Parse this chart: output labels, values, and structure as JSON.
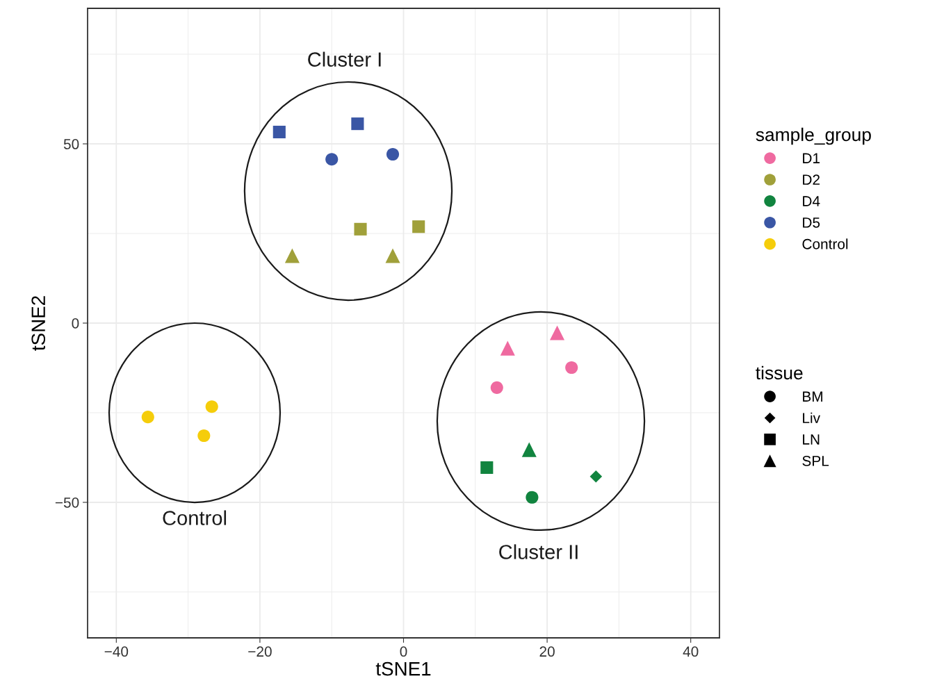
{
  "chart_data": {
    "type": "scatter",
    "xlabel": "tSNE1",
    "ylabel": "tSNE2",
    "legend_title": [
      "sample_group",
      "tissue"
    ],
    "legend": "right",
    "grid": true,
    "xlim": [
      -44,
      44
    ],
    "xticks": [
      {
        "value": -40,
        "label": "−40"
      },
      {
        "value": -20,
        "label": "−20"
      },
      0,
      20,
      40
    ],
    "ylim": [
      -87.8,
      87.8
    ],
    "yticks": [
      {
        "value": -50,
        "label": "−50"
      },
      0,
      50
    ],
    "annotations": [
      "Cluster I",
      "Control",
      "Cluster II",
      "BM",
      "Liv",
      "LN",
      "SPL"
    ],
    "series": [
      {
        "name": "D1",
        "marker": "circle",
        "color": "#ef6aa0",
        "x": [
          13.0,
          23.4
        ],
        "values": [
          -18.0,
          -12.4
        ]
      },
      {
        "marker": "diamond",
        "color": "#11843f",
        "x": [
          26.8
        ],
        "values": [
          -42.8
        ]
      },
      {
        "name": "D2",
        "marker": "square",
        "color": "#a0a03a",
        "x": [
          -6.0,
          2.1
        ],
        "values": [
          26.2,
          26.9
        ]
      },
      {
        "marker": "triangle",
        "color": "#a0a03a",
        "x": [
          -15.5,
          -1.5
        ],
        "values": [
          18.8,
          18.8
        ]
      },
      {
        "marker": "triangle",
        "color": "#ef6aa0",
        "x": [
          14.5,
          21.4
        ],
        "values": [
          -7.0,
          -2.7
        ]
      },
      {
        "name": "D4",
        "marker": "circle",
        "color": "#11843f",
        "x": [
          17.9
        ],
        "values": [
          -48.6
        ]
      },
      {
        "marker": "square",
        "color": "#11843f",
        "x": [
          11.6
        ],
        "values": [
          -40.3
        ]
      },
      {
        "marker": "triangle",
        "color": "#11843f",
        "x": [
          17.5
        ],
        "values": [
          -35.3
        ]
      },
      {
        "name": "D5",
        "marker": "circle",
        "color": "#3a56a5",
        "x": [
          -10.0,
          -1.5
        ],
        "values": [
          45.7,
          47.1
        ]
      },
      {
        "marker": "square",
        "color": "#3a56a5",
        "x": [
          -17.3,
          -6.4
        ],
        "values": [
          53.3,
          55.6
        ]
      },
      {
        "name": "Control",
        "marker": "circle",
        "color": "#f5cd0b",
        "x": [
          -35.6,
          -26.7,
          -27.8
        ],
        "values": [
          -26.2,
          -23.3,
          -31.4
        ]
      }
    ]
  }
}
